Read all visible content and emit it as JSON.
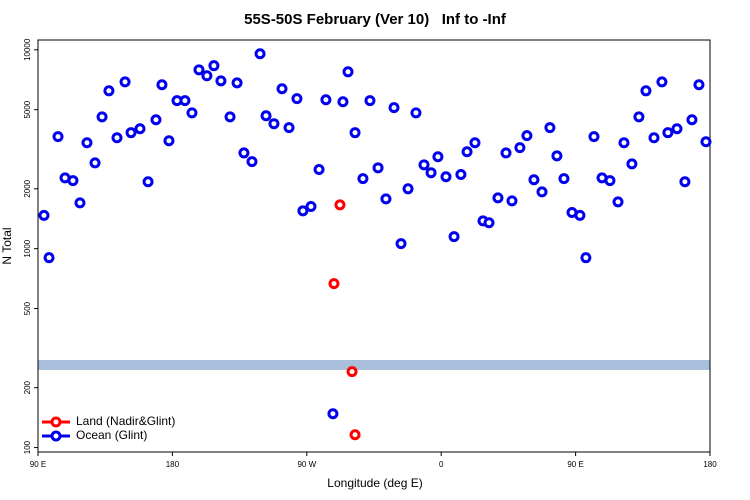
{
  "chart_data": {
    "type": "scatter",
    "title": "55S-50S February (Ver 10)   Inf to -Inf",
    "x_label": "Longitude (deg E)",
    "y_label": "N Total",
    "xlim": [
      90,
      540
    ],
    "xticks": [
      {
        "value": 90,
        "label": "90 E"
      },
      180,
      {
        "value": 270,
        "label": "90 W"
      },
      {
        "value": 360,
        "label": "0"
      },
      {
        "value": 450,
        "label": "90 E"
      },
      {
        "value": 540,
        "label": "180"
      }
    ],
    "ylim": [
      95,
      11200
    ],
    "yticks": [
      100,
      200,
      500,
      1000,
      2000,
      5000,
      10000
    ],
    "log_y": true,
    "legend": "bottom-left",
    "series": [
      {
        "name": "Land (Nadir&Glint)",
        "color": "#ff0000",
        "x": [
          292.2,
          288.2,
          300.3,
          302.3
        ],
        "values": [
          1660,
          667,
          241,
          116
        ]
      },
      {
        "name": "Ocean (Glint)",
        "color": "#0000ee",
        "x": [
          94.0,
          97.4,
          103.4,
          108.1,
          113.4,
          118.1,
          122.8,
          128.2,
          132.9,
          137.5,
          142.9,
          148.3,
          152.3,
          158.3,
          163.7,
          169.0,
          173.0,
          177.7,
          183.1,
          188.4,
          193.1,
          197.8,
          203.1,
          207.8,
          212.5,
          218.6,
          223.3,
          227.9,
          233.3,
          238.7,
          242.7,
          248.0,
          253.4,
          258.1,
          263.4,
          267.4,
          272.8,
          278.2,
          282.8,
          287.5,
          294.2,
          297.6,
          302.3,
          307.6,
          312.3,
          317.7,
          323.0,
          328.4,
          333.1,
          337.8,
          343.1,
          348.5,
          353.2,
          357.8,
          363.2,
          368.6,
          373.2,
          377.3,
          382.6,
          388.0,
          392.0,
          398.0,
          403.4,
          407.4,
          412.7,
          417.4,
          422.1,
          427.5,
          432.8,
          437.5,
          442.2,
          447.6,
          452.9,
          456.9,
          462.3,
          467.7,
          473.0,
          478.4,
          482.4,
          487.7,
          492.4,
          497.1,
          502.5,
          507.8,
          511.8,
          517.9,
          523.2,
          527.9,
          532.6,
          537.3
        ],
        "values": [
          1470,
          901,
          3660,
          2270,
          2200,
          1700,
          3410,
          2700,
          4600,
          6220,
          3610,
          6900,
          3830,
          4010,
          2170,
          4450,
          6670,
          3490,
          5550,
          5550,
          4820,
          7930,
          7400,
          8320,
          6980,
          4600,
          6820,
          3030,
          2740,
          9550,
          4660,
          4250,
          6370,
          4060,
          5680,
          1550,
          1630,
          2500,
          5610,
          148,
          5480,
          7750,
          3830,
          2250,
          5550,
          2550,
          1780,
          5120,
          1060,
          2000,
          4820,
          2640,
          2410,
          2900,
          2300,
          1150,
          2360,
          3070,
          3410,
          1380,
          1350,
          1800,
          3030,
          1740,
          3220,
          3700,
          2220,
          1930,
          4060,
          2930,
          2250,
          1520,
          1470,
          901,
          3660,
          2270,
          2200,
          1720,
          3410,
          2670,
          4600,
          6220,
          3610,
          6900,
          3830,
          4010,
          2170,
          4450,
          6670,
          3450
        ]
      }
    ]
  }
}
